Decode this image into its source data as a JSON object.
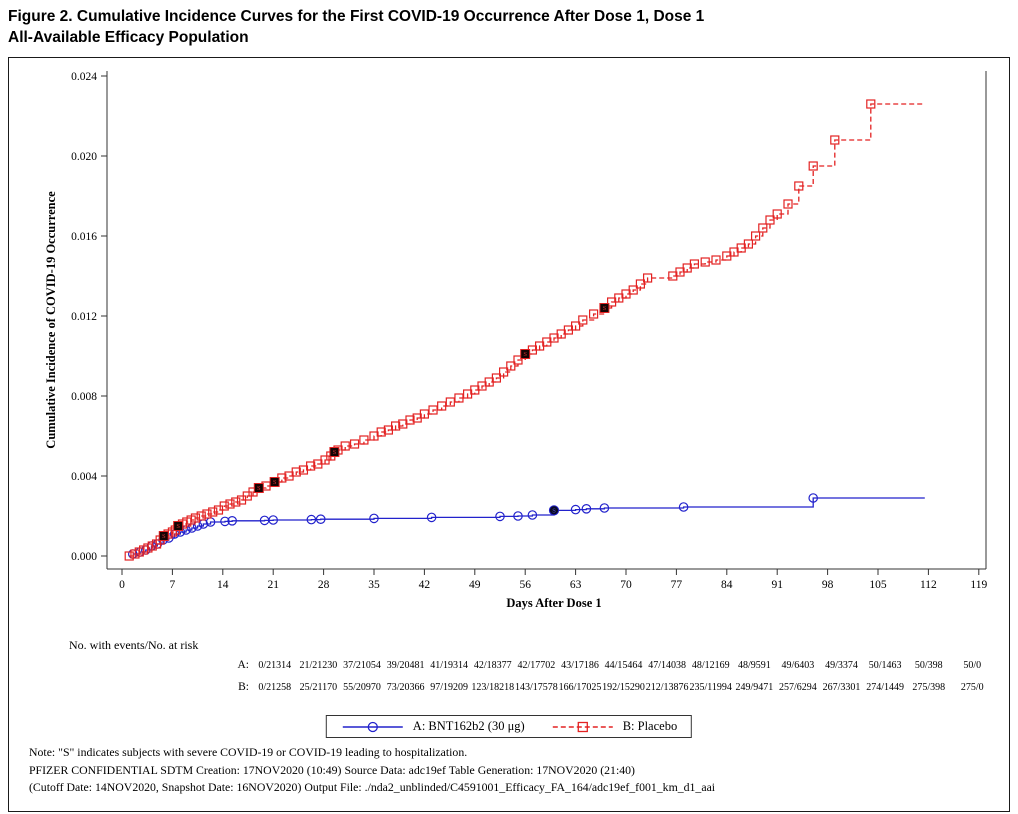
{
  "title": {
    "line1": "Figure 2. Cumulative Incidence Curves for the First COVID-19 Occurrence After Dose 1, Dose 1",
    "line2": "All-Available Efficacy Population"
  },
  "chart_data": {
    "type": "line",
    "subtype": "kaplan-meier-step",
    "title": "",
    "xlabel": "Days After Dose 1",
    "ylabel": "Cumulative Incidence of COVID-19 Occurrence",
    "xlim": [
      0,
      119
    ],
    "ylim": [
      0.0,
      0.024
    ],
    "grid": false,
    "legend_position": "bottom",
    "xticks": [
      0,
      7,
      14,
      21,
      28,
      35,
      42,
      49,
      56,
      63,
      70,
      77,
      84,
      91,
      98,
      105,
      112,
      119
    ],
    "yticks": [
      0.0,
      0.004,
      0.008,
      0.012,
      0.016,
      0.02,
      0.024
    ],
    "ytick_labels": [
      "0.000",
      "0.004",
      "0.008",
      "0.012",
      "0.016",
      "0.020",
      "0.024"
    ],
    "severe_note": "S = severe COVID-19 or COVID-19 leading to hospitalization",
    "series": [
      {
        "name": "A: BNT162b2 (30 μg)",
        "color": "#2222cc",
        "severe_fill": "#0a0a24",
        "severe_glyph_color": "#5050d8",
        "line": "solid",
        "marker": "circle",
        "end_day": 111.5,
        "points": [
          [
            1.5,
            0.0001
          ],
          [
            2.5,
            0.0002
          ],
          [
            3.3,
            0.0003
          ],
          [
            4.1,
            0.0005
          ],
          [
            4.9,
            0.0006
          ],
          [
            5.7,
            0.0008
          ],
          [
            6.5,
            0.0009
          ],
          [
            7.3,
            0.0011
          ],
          [
            8.1,
            0.0012
          ],
          [
            8.9,
            0.0013
          ],
          [
            9.7,
            0.0014
          ],
          [
            10.5,
            0.0015
          ],
          [
            11.3,
            0.0016
          ],
          [
            12.3,
            0.0017
          ],
          [
            14.3,
            0.00173
          ],
          [
            15.3,
            0.00176
          ],
          [
            19.8,
            0.00178
          ],
          [
            21.0,
            0.0018
          ],
          [
            26.3,
            0.00182
          ],
          [
            27.6,
            0.00184
          ],
          [
            35.0,
            0.00188
          ],
          [
            43.0,
            0.00193
          ],
          [
            52.5,
            0.00198
          ],
          [
            55.0,
            0.002
          ],
          [
            57.0,
            0.00205
          ],
          [
            60.0,
            0.00228
          ],
          [
            63.0,
            0.00232
          ],
          [
            64.5,
            0.00236
          ],
          [
            67.0,
            0.0024
          ],
          [
            78.0,
            0.00245
          ],
          [
            96.0,
            0.0029
          ]
        ],
        "severe_points": [
          [
            60.0,
            0.00228
          ]
        ]
      },
      {
        "name": "B: Placebo",
        "color": "#e32222",
        "severe_fill": "#140404",
        "severe_glyph_color": "#d03030",
        "line": "dashed",
        "marker": "square",
        "end_day": 111.5,
        "points": [
          [
            1,
            0.0
          ],
          [
            1.8,
            0.0001
          ],
          [
            2.4,
            0.0002
          ],
          [
            3.0,
            0.0003
          ],
          [
            3.6,
            0.0004
          ],
          [
            4.2,
            0.0005
          ],
          [
            4.8,
            0.0006
          ],
          [
            5.3,
            0.0008
          ],
          [
            5.8,
            0.001
          ],
          [
            6.4,
            0.0011
          ],
          [
            7.0,
            0.0012
          ],
          [
            7.4,
            0.0013
          ],
          [
            7.8,
            0.0015
          ],
          [
            8.4,
            0.0016
          ],
          [
            9.0,
            0.0017
          ],
          [
            9.6,
            0.0018
          ],
          [
            10.2,
            0.0019
          ],
          [
            11.0,
            0.002
          ],
          [
            11.8,
            0.0021
          ],
          [
            12.6,
            0.0022
          ],
          [
            13.4,
            0.0023
          ],
          [
            14.2,
            0.0025
          ],
          [
            15.0,
            0.0026
          ],
          [
            15.8,
            0.0027
          ],
          [
            16.6,
            0.0028
          ],
          [
            17.4,
            0.003
          ],
          [
            18.2,
            0.0032
          ],
          [
            19.0,
            0.0034
          ],
          [
            20.0,
            0.0035
          ],
          [
            21.2,
            0.0037
          ],
          [
            22.2,
            0.0039
          ],
          [
            23.2,
            0.004
          ],
          [
            24.2,
            0.0042
          ],
          [
            25.2,
            0.0043
          ],
          [
            26.2,
            0.0045
          ],
          [
            27.2,
            0.0046
          ],
          [
            28.2,
            0.0048
          ],
          [
            29.0,
            0.005
          ],
          [
            30.0,
            0.0053
          ],
          [
            31.0,
            0.0055
          ],
          [
            32.3,
            0.0056
          ],
          [
            33.6,
            0.0058
          ],
          [
            35.0,
            0.006
          ],
          [
            36.0,
            0.0062
          ],
          [
            37.0,
            0.0063
          ],
          [
            38.0,
            0.0065
          ],
          [
            39.0,
            0.0066
          ],
          [
            40.0,
            0.0068
          ],
          [
            41.0,
            0.0069
          ],
          [
            42.0,
            0.0071
          ],
          [
            43.2,
            0.0073
          ],
          [
            44.4,
            0.0075
          ],
          [
            45.6,
            0.0077
          ],
          [
            46.8,
            0.0079
          ],
          [
            48.0,
            0.0081
          ],
          [
            49.0,
            0.0083
          ],
          [
            50.0,
            0.0085
          ],
          [
            51.0,
            0.0087
          ],
          [
            52.0,
            0.0089
          ],
          [
            53.0,
            0.0092
          ],
          [
            54.0,
            0.0095
          ],
          [
            55.0,
            0.0098
          ],
          [
            56.0,
            0.0101
          ],
          [
            57.0,
            0.0103
          ],
          [
            58.0,
            0.0105
          ],
          [
            59.0,
            0.0107
          ],
          [
            60.0,
            0.0109
          ],
          [
            61.0,
            0.0111
          ],
          [
            62.0,
            0.0113
          ],
          [
            63.0,
            0.0115
          ],
          [
            64.0,
            0.0118
          ],
          [
            65.5,
            0.0121
          ],
          [
            67.0,
            0.0124
          ],
          [
            68.0,
            0.0127
          ],
          [
            69.0,
            0.0129
          ],
          [
            70.0,
            0.0131
          ],
          [
            71.0,
            0.0133
          ],
          [
            72.0,
            0.0136
          ],
          [
            73.0,
            0.0139
          ],
          [
            76.5,
            0.014
          ],
          [
            77.5,
            0.0142
          ],
          [
            78.5,
            0.0144
          ],
          [
            79.5,
            0.0146
          ],
          [
            81.0,
            0.0147
          ],
          [
            82.5,
            0.0148
          ],
          [
            84.0,
            0.015
          ],
          [
            85.0,
            0.0152
          ],
          [
            86.0,
            0.0154
          ],
          [
            87.0,
            0.0156
          ],
          [
            88.0,
            0.016
          ],
          [
            89.0,
            0.0164
          ],
          [
            90.0,
            0.0168
          ],
          [
            91.0,
            0.0171
          ],
          [
            92.5,
            0.0176
          ],
          [
            94.0,
            0.0185
          ],
          [
            96.0,
            0.0195
          ],
          [
            99.0,
            0.0208
          ],
          [
            104.0,
            0.0226
          ]
        ],
        "severe_points": [
          [
            5.8,
            0.001
          ],
          [
            7.8,
            0.0015
          ],
          [
            19.0,
            0.0034
          ],
          [
            21.2,
            0.0037
          ],
          [
            29.5,
            0.0052
          ],
          [
            56.0,
            0.0101
          ],
          [
            67.0,
            0.0124
          ]
        ]
      }
    ]
  },
  "risk_table": {
    "caption": "No. with events/No. at risk",
    "rows": [
      {
        "label": "A:",
        "values": [
          "0/21314",
          "21/21230",
          "37/21054",
          "39/20481",
          "41/19314",
          "42/18377",
          "42/17702",
          "43/17186",
          "44/15464",
          "47/14038",
          "48/12169",
          "48/9591",
          "49/6403",
          "49/3374",
          "50/1463",
          "50/398",
          "50/0"
        ]
      },
      {
        "label": "B:",
        "values": [
          "0/21258",
          "25/21170",
          "55/20970",
          "73/20366",
          "97/19209",
          "123/18218",
          "143/17578",
          "166/17025",
          "192/15290",
          "212/13876",
          "235/11994",
          "249/9471",
          "257/6294",
          "267/3301",
          "274/1449",
          "275/398",
          "275/0"
        ]
      }
    ]
  },
  "legend": {
    "items": [
      {
        "label": "A: BNT162b2 (30 μg)",
        "color": "#2222cc",
        "line": "solid",
        "marker": "circle"
      },
      {
        "label": "B: Placebo",
        "color": "#e32222",
        "line": "dashed",
        "marker": "square"
      }
    ]
  },
  "footnotes": [
    "Note: \"S\" indicates subjects with severe COVID-19 or COVID-19 leading to hospitalization.",
    "PFIZER CONFIDENTIAL  SDTM Creation: 17NOV2020 (10:49)  Source Data: adc19ef  Table Generation: 17NOV2020 (21:40)",
    "(Cutoff Date: 14NOV2020, Snapshot Date: 16NOV2020) Output File: ./nda2_unblinded/C4591001_Efficacy_FA_164/adc19ef_f001_km_d1_aai"
  ]
}
